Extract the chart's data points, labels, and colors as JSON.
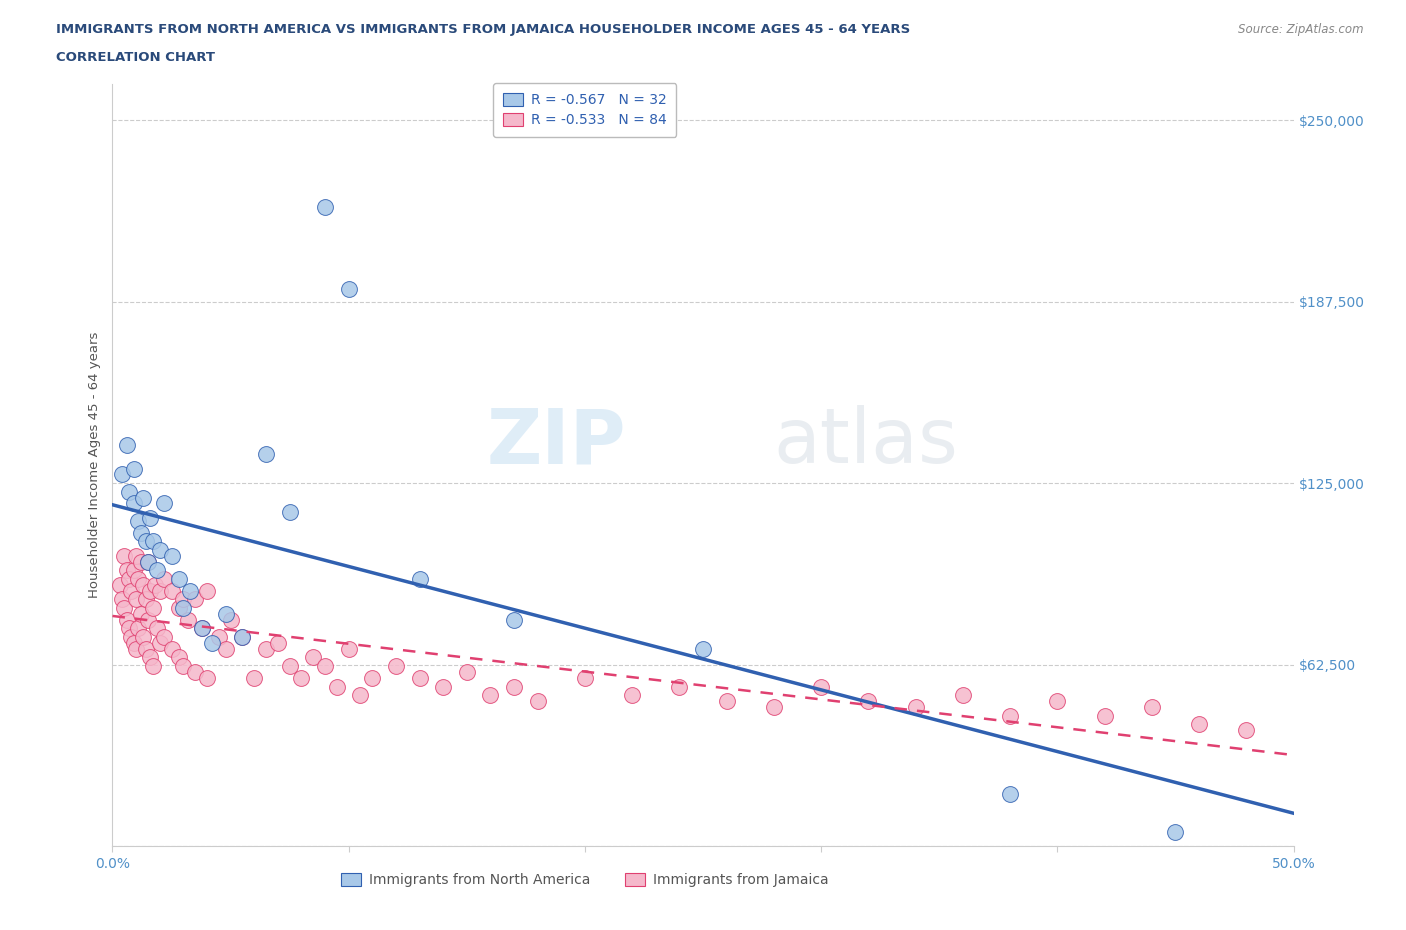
{
  "title_line1": "IMMIGRANTS FROM NORTH AMERICA VS IMMIGRANTS FROM JAMAICA HOUSEHOLDER INCOME AGES 45 - 64 YEARS",
  "title_line2": "CORRELATION CHART",
  "source_text": "Source: ZipAtlas.com",
  "ylabel": "Householder Income Ages 45 - 64 years",
  "xlim": [
    0.0,
    0.5
  ],
  "ylim": [
    0,
    262500
  ],
  "xticks": [
    0.0,
    0.1,
    0.2,
    0.3,
    0.4,
    0.5
  ],
  "xticklabels": [
    "0.0%",
    "",
    "",
    "",
    "",
    "50.0%"
  ],
  "yticks_right": [
    0,
    62500,
    125000,
    187500,
    250000
  ],
  "yticklabels_right": [
    "",
    "$62,500",
    "$125,000",
    "$187,500",
    "$250,000"
  ],
  "grid_color": "#cccccc",
  "legend_r1": "R = -0.567   N = 32",
  "legend_r2": "R = -0.533   N = 84",
  "legend_label1": "Immigrants from North America",
  "legend_label2": "Immigrants from Jamaica",
  "blue_color": "#a8c8e8",
  "pink_color": "#f5b8cb",
  "blue_line_color": "#3060b0",
  "pink_line_color": "#e04070",
  "title_color": "#2a4a7a",
  "axis_color": "#5090c8",
  "source_color": "#888888",
  "north_america_x": [
    0.004,
    0.006,
    0.007,
    0.009,
    0.009,
    0.011,
    0.012,
    0.013,
    0.014,
    0.015,
    0.016,
    0.017,
    0.019,
    0.02,
    0.022,
    0.025,
    0.028,
    0.03,
    0.033,
    0.038,
    0.042,
    0.048,
    0.055,
    0.065,
    0.075,
    0.09,
    0.1,
    0.13,
    0.17,
    0.25,
    0.38,
    0.45
  ],
  "north_america_y": [
    128000,
    138000,
    122000,
    118000,
    130000,
    112000,
    108000,
    120000,
    105000,
    98000,
    113000,
    105000,
    95000,
    102000,
    118000,
    100000,
    92000,
    82000,
    88000,
    75000,
    70000,
    80000,
    72000,
    135000,
    115000,
    220000,
    192000,
    92000,
    78000,
    68000,
    18000,
    5000
  ],
  "jamaica_x": [
    0.003,
    0.004,
    0.005,
    0.005,
    0.006,
    0.006,
    0.007,
    0.007,
    0.008,
    0.008,
    0.009,
    0.009,
    0.01,
    0.01,
    0.01,
    0.011,
    0.011,
    0.012,
    0.012,
    0.013,
    0.013,
    0.014,
    0.014,
    0.015,
    0.015,
    0.016,
    0.016,
    0.017,
    0.017,
    0.018,
    0.019,
    0.02,
    0.02,
    0.022,
    0.022,
    0.025,
    0.025,
    0.028,
    0.028,
    0.03,
    0.03,
    0.032,
    0.035,
    0.035,
    0.038,
    0.04,
    0.04,
    0.045,
    0.048,
    0.05,
    0.055,
    0.06,
    0.065,
    0.07,
    0.075,
    0.08,
    0.085,
    0.09,
    0.095,
    0.1,
    0.105,
    0.11,
    0.12,
    0.13,
    0.14,
    0.15,
    0.16,
    0.17,
    0.18,
    0.2,
    0.22,
    0.24,
    0.26,
    0.28,
    0.3,
    0.32,
    0.34,
    0.36,
    0.38,
    0.4,
    0.42,
    0.44,
    0.46,
    0.48
  ],
  "jamaica_y": [
    90000,
    85000,
    100000,
    82000,
    95000,
    78000,
    92000,
    75000,
    88000,
    72000,
    95000,
    70000,
    100000,
    85000,
    68000,
    92000,
    75000,
    98000,
    80000,
    90000,
    72000,
    85000,
    68000,
    98000,
    78000,
    88000,
    65000,
    82000,
    62000,
    90000,
    75000,
    88000,
    70000,
    92000,
    72000,
    88000,
    68000,
    82000,
    65000,
    85000,
    62000,
    78000,
    85000,
    60000,
    75000,
    88000,
    58000,
    72000,
    68000,
    78000,
    72000,
    58000,
    68000,
    70000,
    62000,
    58000,
    65000,
    62000,
    55000,
    68000,
    52000,
    58000,
    62000,
    58000,
    55000,
    60000,
    52000,
    55000,
    50000,
    58000,
    52000,
    55000,
    50000,
    48000,
    55000,
    50000,
    48000,
    52000,
    45000,
    50000,
    45000,
    48000,
    42000,
    40000
  ]
}
